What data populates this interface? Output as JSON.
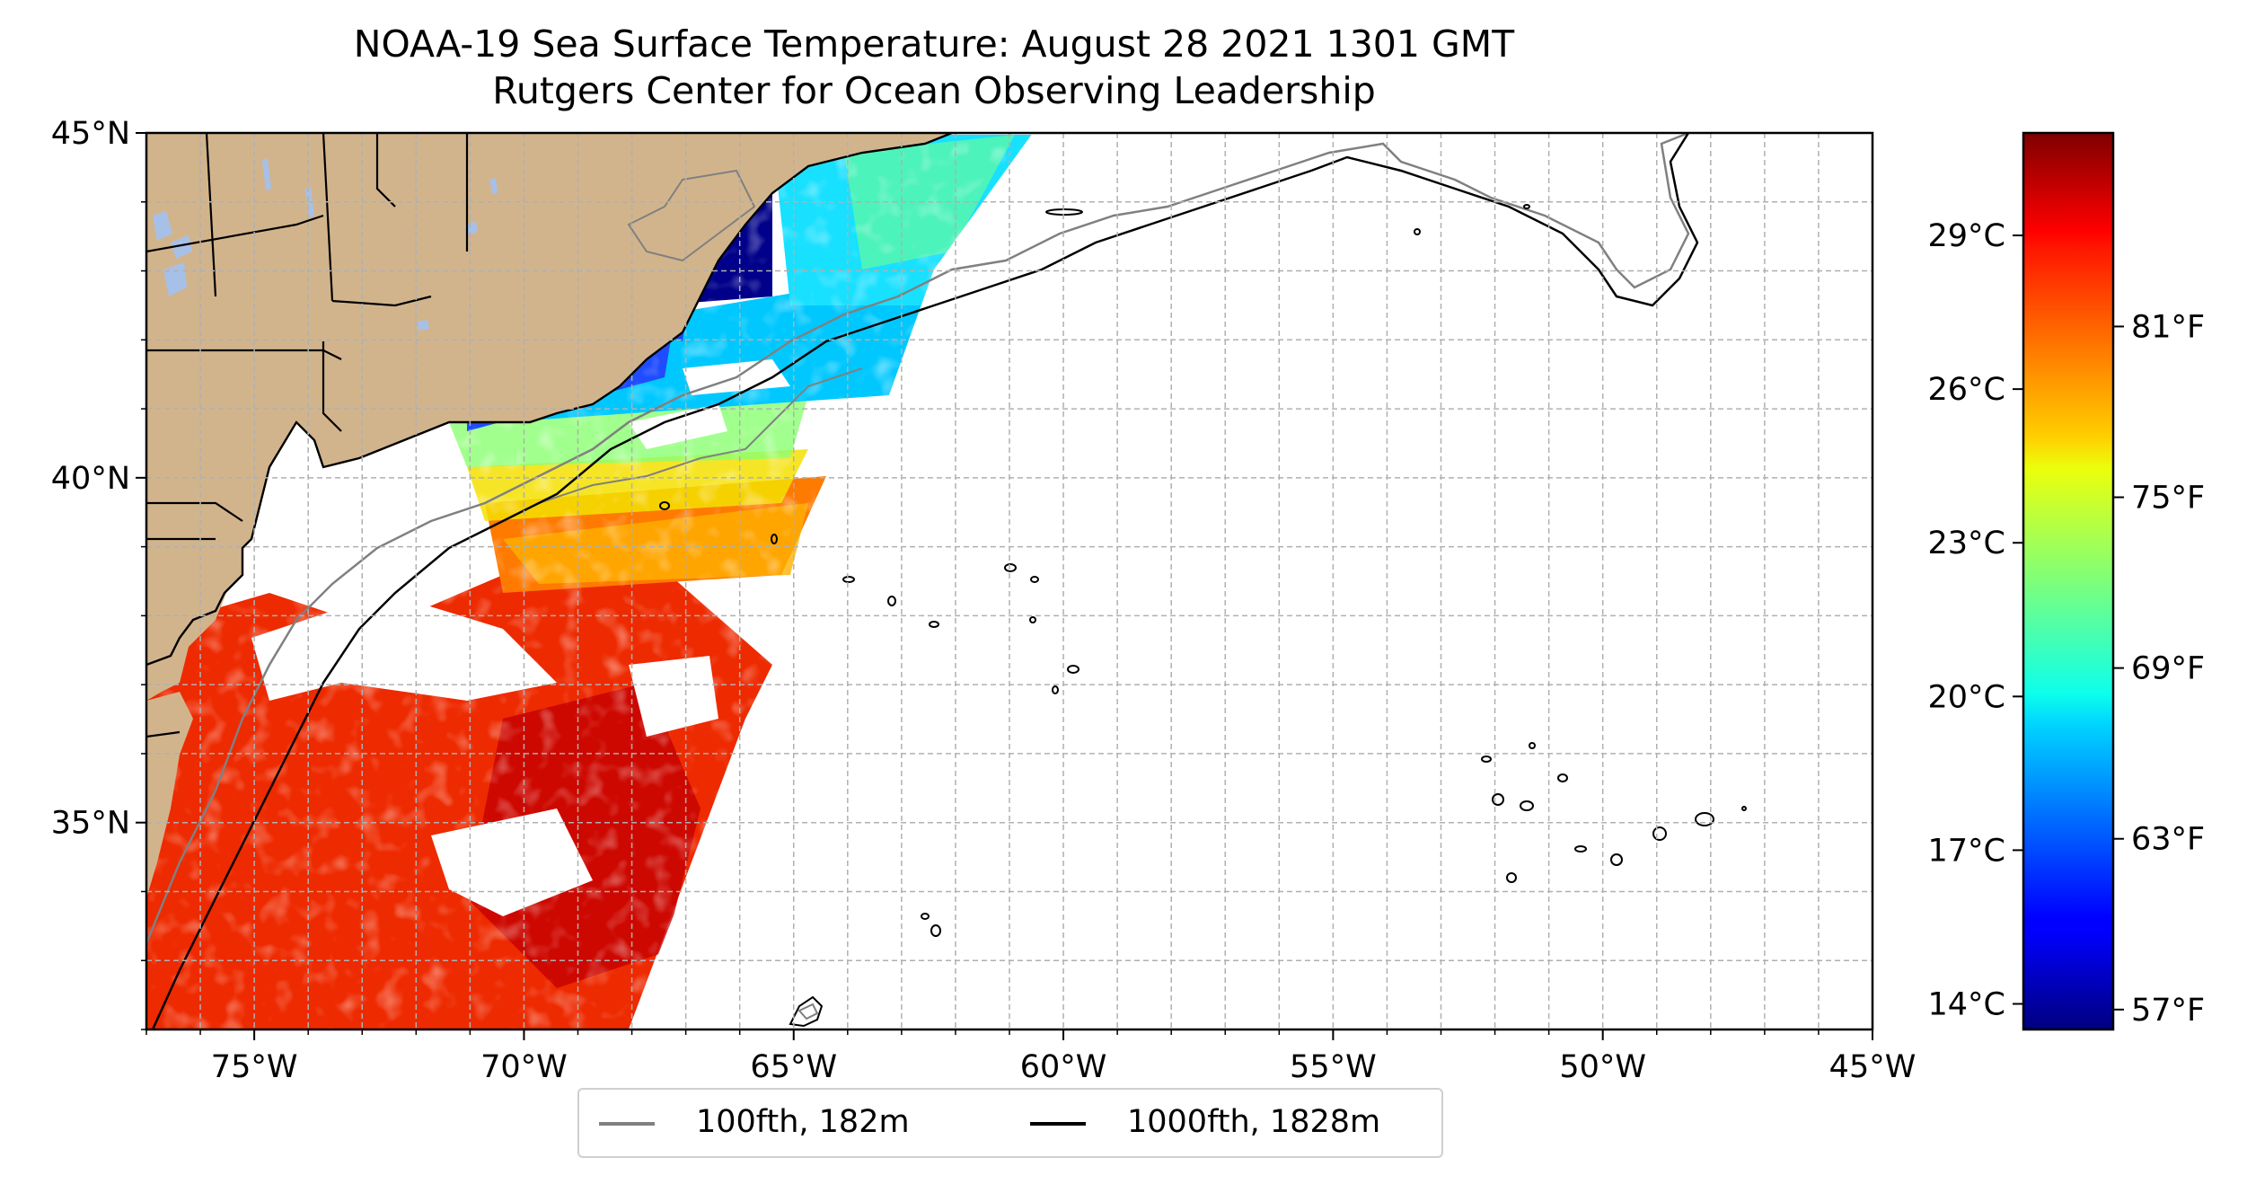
{
  "title": "NOAA-19 Sea Surface Temperature: August 28 2021 1301 GMT",
  "subtitle": "Rutgers Center for Ocean Observing Leadership",
  "map": {
    "lon_range": [
      -77,
      -45
    ],
    "lat_range": [
      32,
      45
    ],
    "x_ticks": [
      {
        "lon": -75,
        "label": "75°W"
      },
      {
        "lon": -70,
        "label": "70°W"
      },
      {
        "lon": -65,
        "label": "65°W"
      },
      {
        "lon": -60,
        "label": "60°W"
      },
      {
        "lon": -55,
        "label": "55°W"
      },
      {
        "lon": -50,
        "label": "50°W"
      },
      {
        "lon": -45,
        "label": "45°W"
      }
    ],
    "y_ticks": [
      {
        "lat": 45,
        "label": "45°N"
      },
      {
        "lat": 40,
        "label": "40°N"
      },
      {
        "lat": 35,
        "label": "35°N"
      }
    ],
    "grid": "dashed, 1 degree",
    "land_color": "#d2b48c",
    "lake_color": "#a7c0e8",
    "isobath_100_color": "#808080",
    "isobath_1000_color": "#000000"
  },
  "colorbar": {
    "colormap": "jet",
    "range_c": [
      13.5,
      31
    ],
    "celsius_ticks": [
      {
        "value": 29,
        "label": "29°C"
      },
      {
        "value": 26,
        "label": "26°C"
      },
      {
        "value": 23,
        "label": "23°C"
      },
      {
        "value": 20,
        "label": "20°C"
      },
      {
        "value": 17,
        "label": "17°C"
      },
      {
        "value": 14,
        "label": "14°C"
      }
    ],
    "fahrenheit_ticks": [
      {
        "value": 81,
        "label": "81°F"
      },
      {
        "value": 75,
        "label": "75°F"
      },
      {
        "value": 69,
        "label": "69°F"
      },
      {
        "value": 63,
        "label": "63°F"
      },
      {
        "value": 57,
        "label": "57°F"
      }
    ]
  },
  "legend": {
    "items": [
      {
        "label": "100fth, 182m",
        "color": "#808080"
      },
      {
        "label": "1000fth, 1828m",
        "color": "#000000"
      }
    ]
  }
}
